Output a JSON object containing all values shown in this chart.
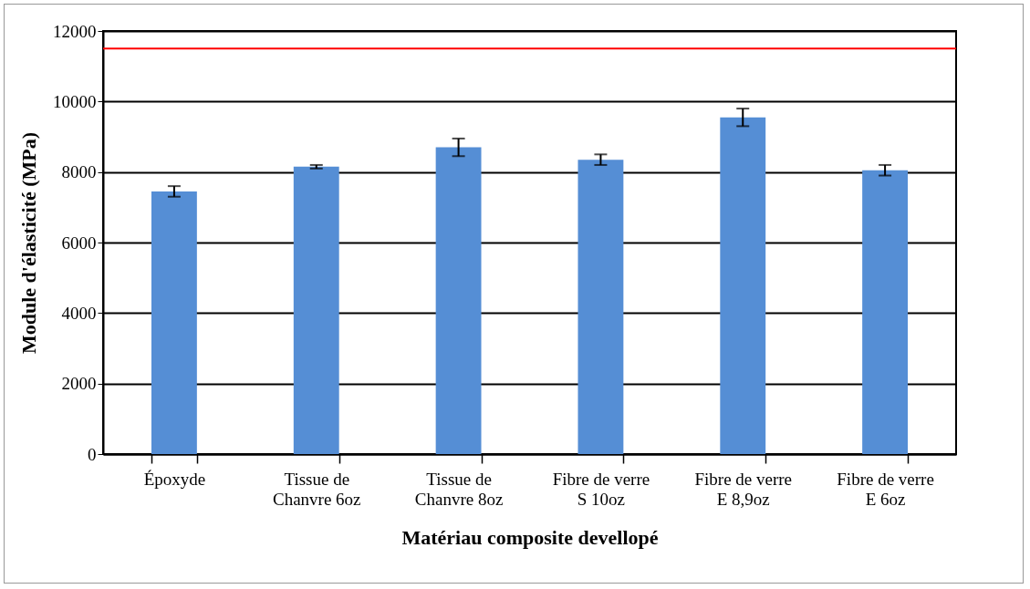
{
  "chart_data": {
    "type": "bar",
    "xlabel": "Matériau composite devellopé",
    "ylabel": "Module d'élasticité  (MPa)",
    "categories": [
      "Époxyde",
      "Tissue de\nChanvre 6oz",
      "Tissue de\nChanvre 8oz",
      "Fibre de verre\nS 10oz",
      "Fibre de verre\nE 8,9oz",
      "Fibre de verre\nE 6oz"
    ],
    "values": [
      7450,
      8150,
      8700,
      8350,
      9550,
      8050
    ],
    "errors": [
      150,
      50,
      250,
      150,
      250,
      150
    ],
    "color": "#558ed5",
    "ylim": [
      0,
      12000
    ],
    "yticks": [
      0,
      2000,
      4000,
      6000,
      8000,
      10000,
      12000
    ],
    "grid": "y",
    "ref_lines": [
      {
        "axis": "y",
        "value": 11500,
        "color": "#ff0000"
      }
    ]
  }
}
